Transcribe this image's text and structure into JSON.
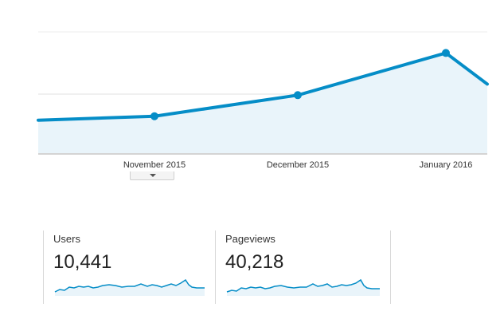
{
  "overview_chart": {
    "x_labels": [
      "November 2015",
      "December 2015",
      "January 2016"
    ],
    "line_color": "#058dc7",
    "fill_color": "#e9f4fa",
    "collapse_icon": "chevron-down-icon"
  },
  "metrics": [
    {
      "name": "Users",
      "value": "10,441"
    },
    {
      "name": "Pageviews",
      "value": "40,218"
    }
  ],
  "chart_data": [
    {
      "type": "area",
      "x": [
        "November 2015",
        "December 2015",
        "January 2016"
      ],
      "series": [
        {
          "values": [
            2700,
            3100,
            3900
          ]
        }
      ]
    }
  ]
}
